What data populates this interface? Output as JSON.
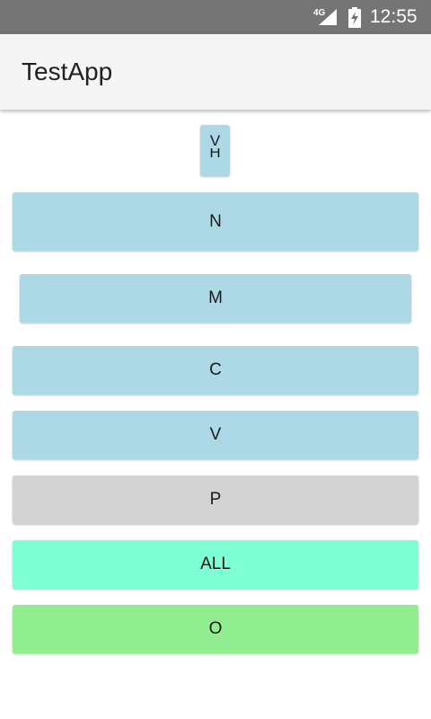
{
  "status_bar": {
    "network": "4G",
    "time": "12:55",
    "icons": [
      "signal-icon",
      "battery-charging-icon"
    ]
  },
  "app_bar": {
    "title": "TestApp"
  },
  "buttons": {
    "tiny": {
      "line1": "V",
      "line2": "H"
    },
    "n": "N",
    "m": "M",
    "c": "C",
    "v": "V",
    "p": "P",
    "all": "ALL",
    "o": "O"
  },
  "colors": {
    "light_blue": "#add8e6",
    "light_gray": "#d3d3d3",
    "aquamarine": "#7fffd4",
    "light_green": "#90ee90"
  }
}
